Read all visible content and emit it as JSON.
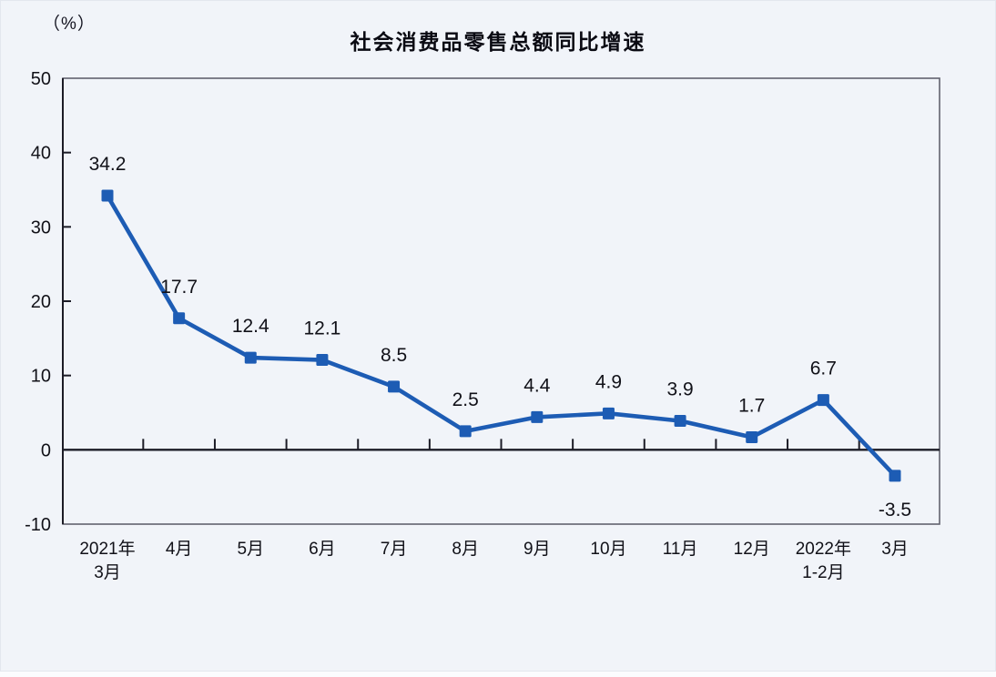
{
  "chart": {
    "title": "社会消费品零售总额同比增速",
    "unit_label": "（%）"
  },
  "chart_data": {
    "type": "line",
    "title": "社会消费品零售总额同比增速",
    "xlabel": "",
    "ylabel": "（%）",
    "categories": [
      "2021年\n3月",
      "4月",
      "5月",
      "6月",
      "7月",
      "8月",
      "9月",
      "10月",
      "11月",
      "12月",
      "2022年\n1-2月",
      "3月"
    ],
    "values": [
      34.2,
      17.7,
      12.4,
      12.1,
      8.5,
      2.5,
      4.4,
      4.9,
      3.9,
      1.7,
      6.7,
      -3.5
    ],
    "point_labels": [
      "34.2",
      "17.7",
      "12.4",
      "12.1",
      "8.5",
      "2.5",
      "4.4",
      "4.9",
      "3.9",
      "1.7",
      "6.7",
      "-3.5"
    ],
    "ylim": [
      -10,
      50
    ],
    "yticks": [
      50,
      40,
      30,
      20,
      10,
      0,
      -10
    ],
    "grid": false,
    "legend_position": "none",
    "colors": {
      "line": "#1d5cb4",
      "marker": "#1d5cb4",
      "axis": "#1c1c26",
      "plot_border": "#62626e",
      "text": "#111118",
      "background": "#f1f4f9"
    }
  }
}
